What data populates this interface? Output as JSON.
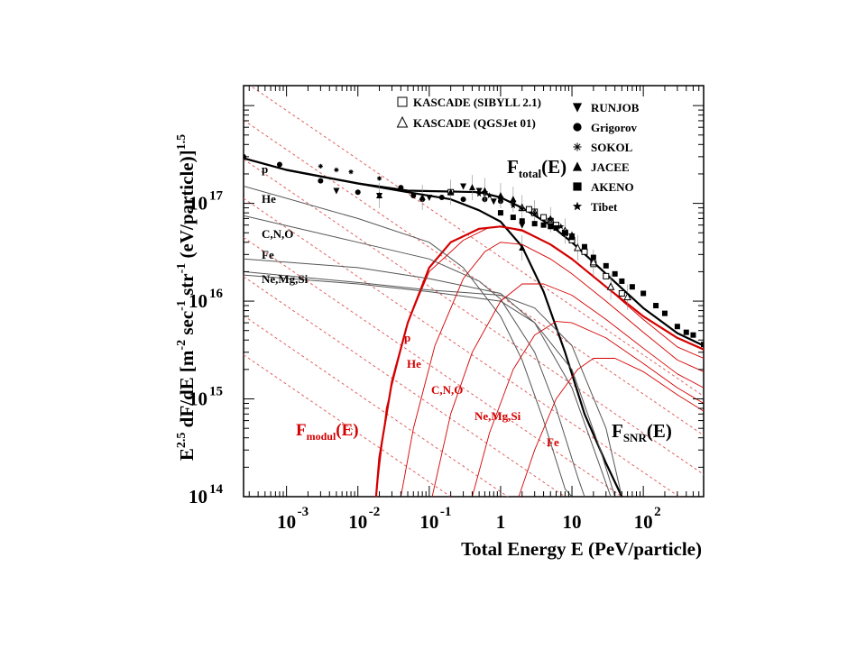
{
  "chart_data": {
    "type": "line",
    "log_x": true,
    "log_y": true,
    "xlim": [
      0.00025,
      700
    ],
    "ylim": [
      100000000000000.0,
      1.6e+18
    ],
    "xlabel": "Total Energy E (PeV/particle)",
    "ylabel": "E^2.5 dF/dE [m^-2 sec^-1 str^-1 (eV/particle)^1.5]",
    "x_ticks": [
      {
        "value": 0.001,
        "base": "10",
        "exp": "-3"
      },
      {
        "value": 0.01,
        "base": "10",
        "exp": "-2"
      },
      {
        "value": 0.1,
        "base": "10",
        "exp": "-1"
      },
      {
        "value": 1,
        "base": "1",
        "exp": ""
      },
      {
        "value": 10,
        "base": "10",
        "exp": ""
      },
      {
        "value": 100,
        "base": "10",
        "exp": "2"
      }
    ],
    "y_ticks": [
      {
        "value": 100000000000000.0,
        "base": "10",
        "exp": "14"
      },
      {
        "value": 1000000000000000.0,
        "base": "10",
        "exp": "15"
      },
      {
        "value": 1e+16,
        "base": "10",
        "exp": "16"
      },
      {
        "value": 1e+17,
        "base": "10",
        "exp": "17"
      }
    ],
    "legend": {
      "placement": "top-right",
      "col1": [
        {
          "marker": "open-square",
          "label": "KASCADE (SIBYLL 2.1)"
        },
        {
          "marker": "open-triangle",
          "label": "KASCADE (QGSJet 01)"
        }
      ],
      "col2": [
        {
          "marker": "triangle-down",
          "label": "RUNJOB"
        },
        {
          "marker": "circle",
          "label": "Grigorov"
        },
        {
          "marker": "asterisk",
          "label": "SOKOL"
        },
        {
          "marker": "triangle-up",
          "label": "JACEE"
        },
        {
          "marker": "square",
          "label": "AKENO"
        },
        {
          "marker": "star",
          "label": "Tibet"
        }
      ]
    },
    "annotations": {
      "ftotal": {
        "main": "F",
        "sub": "total",
        "tail": "(E)"
      },
      "fsnr": {
        "main": "F",
        "sub": "SNR",
        "tail": "(E)"
      },
      "fmodul": {
        "main": "F",
        "sub": "modul",
        "tail": "(E)"
      },
      "black_labels": [
        "p",
        "He",
        "C,N,O",
        "Fe",
        "Ne,Mg,Si"
      ],
      "red_labels": [
        "p",
        "He",
        "C,N,O",
        "Ne,Mg,Si",
        "Fe"
      ]
    },
    "colors": {
      "total": "#000000",
      "modul": "#d40000",
      "component": "#555555",
      "guide": "#e06060"
    },
    "series": [
      {
        "name": "F_total(E)",
        "points": [
          [
            0.00025,
            2.9e+17
          ],
          [
            0.001,
            2.2e+17
          ],
          [
            0.01,
            1.6e+17
          ],
          [
            0.05,
            1.35e+17
          ],
          [
            0.2,
            1.32e+17
          ],
          [
            0.5,
            1.3e+17
          ],
          [
            1,
            1.15e+17
          ],
          [
            2,
            9e+16
          ],
          [
            5,
            6e+16
          ],
          [
            10,
            4e+16
          ],
          [
            30,
            1.9e+16
          ],
          [
            100,
            8500000000000000.0
          ],
          [
            300,
            4700000000000000.0
          ],
          [
            700,
            3500000000000000.0
          ]
        ]
      },
      {
        "name": "F_SNR(E)",
        "points": [
          [
            0.00025,
            2.9e+17
          ],
          [
            0.001,
            2.2e+17
          ],
          [
            0.01,
            1.6e+17
          ],
          [
            0.05,
            1.3e+17
          ],
          [
            0.2,
            1.1e+17
          ],
          [
            0.5,
            8.5e+16
          ],
          [
            1,
            6.5e+16
          ],
          [
            2,
            3.6e+16
          ],
          [
            4,
            1.25e+16
          ],
          [
            8,
            3000000000000000.0
          ],
          [
            15,
            700000000000000.0
          ],
          [
            30,
            220000000000000.0
          ],
          [
            50,
            100000000000000.0
          ]
        ]
      },
      {
        "name": "F_modul(E)",
        "points": [
          [
            0.018,
            100000000000000.0
          ],
          [
            0.02,
            250000000000000.0
          ],
          [
            0.03,
            1500000000000000.0
          ],
          [
            0.05,
            6000000000000000.0
          ],
          [
            0.1,
            2.2e+16
          ],
          [
            0.2,
            4e+16
          ],
          [
            0.5,
            5.5e+16
          ],
          [
            1,
            5.8e+16
          ],
          [
            2,
            5.3e+16
          ],
          [
            5,
            3.8e+16
          ],
          [
            10,
            2.7e+16
          ],
          [
            30,
            1.4e+16
          ],
          [
            100,
            7000000000000000.0
          ],
          [
            300,
            4200000000000000.0
          ],
          [
            700,
            3200000000000000.0
          ]
        ]
      },
      {
        "name": "p",
        "points": [
          [
            0.00025,
            1.5e+17
          ],
          [
            0.01,
            7e+16
          ],
          [
            0.1,
            4e+16
          ],
          [
            0.3,
            2.2e+16
          ],
          [
            1,
            7000000000000000.0
          ],
          [
            2,
            2500000000000000.0
          ],
          [
            4,
            600000000000000.0
          ],
          [
            8,
            120000000000000.0
          ],
          [
            10,
            100000000000000.0
          ]
        ]
      },
      {
        "name": "He",
        "points": [
          [
            0.00025,
            7.5e+16
          ],
          [
            0.01,
            4e+16
          ],
          [
            0.1,
            2.7e+16
          ],
          [
            0.5,
            1.6e+16
          ],
          [
            1,
            1.05e+16
          ],
          [
            3,
            3000000000000000.0
          ],
          [
            6,
            800000000000000.0
          ],
          [
            12,
            160000000000000.0
          ],
          [
            15,
            100000000000000.0
          ]
        ]
      },
      {
        "name": "C,N,O",
        "points": [
          [
            0.00025,
            2.7e+16
          ],
          [
            0.01,
            2.2e+16
          ],
          [
            0.1,
            1.7e+16
          ],
          [
            1,
            1.2e+16
          ],
          [
            3,
            6000000000000000.0
          ],
          [
            10,
            1300000000000000.0
          ],
          [
            25,
            200000000000000.0
          ],
          [
            35,
            100000000000000.0
          ]
        ]
      },
      {
        "name": "Fe",
        "points": [
          [
            0.00025,
            2e+16
          ],
          [
            0.01,
            1.55e+16
          ],
          [
            0.1,
            1.3e+16
          ],
          [
            1,
            1.15e+16
          ],
          [
            3,
            8500000000000000.0
          ],
          [
            10,
            3500000000000000.0
          ],
          [
            30,
            500000000000000.0
          ],
          [
            50,
            100000000000000.0
          ]
        ]
      },
      {
        "name": "Ne,Mg,Si",
        "points": [
          [
            0.00025,
            1.85e+16
          ],
          [
            0.01,
            1.5e+16
          ],
          [
            0.1,
            1.25e+16
          ],
          [
            1,
            1e+16
          ],
          [
            3,
            6000000000000000.0
          ],
          [
            10,
            2000000000000000.0
          ],
          [
            25,
            300000000000000.0
          ],
          [
            40,
            100000000000000.0
          ]
        ]
      },
      {
        "name": "p (modul)",
        "points": [
          [
            0.018,
            100000000000000.0
          ],
          [
            0.025,
            800000000000000.0
          ],
          [
            0.05,
            6000000000000000.0
          ],
          [
            0.1,
            2e+16
          ],
          [
            0.3,
            4.2e+16
          ],
          [
            0.7,
            5.7e+16
          ],
          [
            1,
            5.8e+16
          ],
          [
            2,
            5.2e+16
          ],
          [
            5,
            3.8e+16
          ],
          [
            10,
            2.7e+16
          ],
          [
            30,
            1.4e+16
          ],
          [
            100,
            6500000000000000.0
          ],
          [
            300,
            3400000000000000.0
          ],
          [
            700,
            2600000000000000.0
          ]
        ]
      },
      {
        "name": "He (modul)",
        "points": [
          [
            0.04,
            100000000000000.0
          ],
          [
            0.06,
            500000000000000.0
          ],
          [
            0.12,
            3500000000000000.0
          ],
          [
            0.3,
            1.7e+16
          ],
          [
            0.6,
            3.2e+16
          ],
          [
            1,
            4e+16
          ],
          [
            2,
            3.8e+16
          ],
          [
            5,
            2.7e+16
          ],
          [
            10,
            1.9e+16
          ],
          [
            30,
            1e+16
          ],
          [
            100,
            4800000000000000.0
          ],
          [
            300,
            2500000000000000.0
          ],
          [
            700,
            1900000000000000.0
          ]
        ]
      },
      {
        "name": "C,N,O (modul)",
        "points": [
          [
            0.11,
            100000000000000.0
          ],
          [
            0.2,
            700000000000000.0
          ],
          [
            0.4,
            3000000000000000.0
          ],
          [
            1,
            1e+16
          ],
          [
            2,
            1.5e+16
          ],
          [
            4,
            1.5e+16
          ],
          [
            10,
            1.15e+16
          ],
          [
            30,
            6500000000000000.0
          ],
          [
            100,
            3300000000000000.0
          ],
          [
            300,
            1800000000000000.0
          ],
          [
            700,
            1300000000000000.0
          ]
        ]
      },
      {
        "name": "Ne,Mg,Si (modul)",
        "points": [
          [
            0.4,
            100000000000000.0
          ],
          [
            0.7,
            450000000000000.0
          ],
          [
            1.5,
            2000000000000000.0
          ],
          [
            3,
            4500000000000000.0
          ],
          [
            6,
            6200000000000000.0
          ],
          [
            10,
            6000000000000000.0
          ],
          [
            30,
            4200000000000000.0
          ],
          [
            100,
            2300000000000000.0
          ],
          [
            300,
            1300000000000000.0
          ],
          [
            700,
            900000000000000.0
          ]
        ]
      },
      {
        "name": "Fe (modul)",
        "points": [
          [
            1.8,
            100000000000000.0
          ],
          [
            3,
            300000000000000.0
          ],
          [
            6,
            1000000000000000.0
          ],
          [
            12,
            2000000000000000.0
          ],
          [
            20,
            2600000000000000.0
          ],
          [
            40,
            2600000000000000.0
          ],
          [
            100,
            1900000000000000.0
          ],
          [
            300,
            1100000000000000.0
          ],
          [
            700,
            750000000000000.0
          ]
        ]
      }
    ],
    "guide_lines_log10_y_at_x_0_001": [
      17.95,
      17.55,
      17.15,
      16.75,
      16.35,
      15.95,
      15.55,
      15.15
    ],
    "guide_line_slope": -0.5,
    "markers": {
      "kascade_sibyll": [
        [
          0.2,
          1.3e+17
        ],
        [
          2.5,
          8.7e+16
        ],
        [
          3,
          8.2e+16
        ],
        [
          4,
          7.2e+16
        ],
        [
          5,
          6.6e+16
        ],
        [
          6,
          6e+16
        ],
        [
          8,
          5e+16
        ],
        [
          10,
          4.2e+16
        ],
        [
          15,
          3.2e+16
        ],
        [
          20,
          2.4e+16
        ],
        [
          30,
          1.8e+16
        ],
        [
          50,
          1.2e+16
        ]
      ],
      "kascade_qgsjet": [
        [
          2,
          9e+16
        ],
        [
          3,
          8e+16
        ],
        [
          5,
          6.8e+16
        ],
        [
          8,
          5.2e+16
        ],
        [
          12,
          3.5e+16
        ],
        [
          20,
          2.5e+16
        ],
        [
          35,
          1.4e+16
        ],
        [
          60,
          1.1e+16
        ]
      ],
      "runjob": [
        [
          0.005,
          1.35e+17
        ],
        [
          0.02,
          1.2e+17
        ],
        [
          0.1,
          1.15e+17
        ],
        [
          0.3,
          1.5e+17
        ],
        [
          0.5,
          1.35e+17
        ],
        [
          0.6,
          1.25e+17
        ],
        [
          0.8,
          1.05e+17
        ],
        [
          1,
          1.1e+17
        ],
        [
          1.5,
          1e+17
        ],
        [
          2,
          6e+16
        ]
      ],
      "grigorov": [
        [
          0.00025,
          3e+17
        ],
        [
          0.0008,
          2.5e+17
        ],
        [
          0.003,
          1.7e+17
        ],
        [
          0.01,
          1.3e+17
        ],
        [
          0.04,
          1.45e+17
        ],
        [
          0.06,
          1.2e+17
        ],
        [
          0.08,
          1.1e+17
        ],
        [
          0.15,
          1.15e+17
        ],
        [
          0.3,
          1.1e+17
        ],
        [
          0.6,
          1.1e+17
        ],
        [
          1,
          1.05e+17
        ]
      ],
      "sokol": [
        [
          0.003,
          2.4e+17
        ],
        [
          0.005,
          2.2e+17
        ],
        [
          0.008,
          2.1e+17
        ],
        [
          0.02,
          1.8e+17
        ]
      ],
      "jacee": [
        [
          0.02,
          1.2e+17
        ],
        [
          0.08,
          1.15e+17
        ],
        [
          0.2,
          1.3e+17
        ],
        [
          0.4,
          1.45e+17
        ],
        [
          0.6,
          1.35e+17
        ],
        [
          1,
          1.2e+17
        ],
        [
          1.5,
          1.1e+17
        ],
        [
          2,
          3.5e+16
        ]
      ],
      "akeno": [
        [
          1,
          8e+16
        ],
        [
          1.5,
          7.2e+16
        ],
        [
          2,
          6.6e+16
        ],
        [
          3,
          6.2e+16
        ],
        [
          4,
          6e+16
        ],
        [
          5,
          5.8e+16
        ],
        [
          6,
          5.6e+16
        ],
        [
          8,
          5e+16
        ],
        [
          10,
          4.5e+16
        ],
        [
          15,
          3.6e+16
        ],
        [
          20,
          2.8e+16
        ],
        [
          30,
          2.3e+16
        ],
        [
          40,
          1.9e+16
        ],
        [
          50,
          1.6e+16
        ],
        [
          70,
          1.4e+16
        ],
        [
          100,
          1.2e+16
        ],
        [
          150,
          9000000000000000.0
        ],
        [
          200,
          7500000000000000.0
        ],
        [
          300,
          5500000000000000.0
        ],
        [
          400,
          4800000000000000.0
        ],
        [
          500,
          4500000000000000.0
        ],
        [
          700,
          3600000000000000.0
        ]
      ],
      "tibet": [
        [
          0.5,
          1.25e+17
        ],
        [
          0.7,
          1.2e+17
        ],
        [
          1,
          1.1e+17
        ],
        [
          1.5,
          9.5e+16
        ],
        [
          2,
          8.8e+16
        ],
        [
          3,
          7.8e+16
        ],
        [
          5,
          6.8e+16
        ],
        [
          7,
          5.8e+16
        ],
        [
          10,
          4.8e+16
        ]
      ]
    }
  }
}
